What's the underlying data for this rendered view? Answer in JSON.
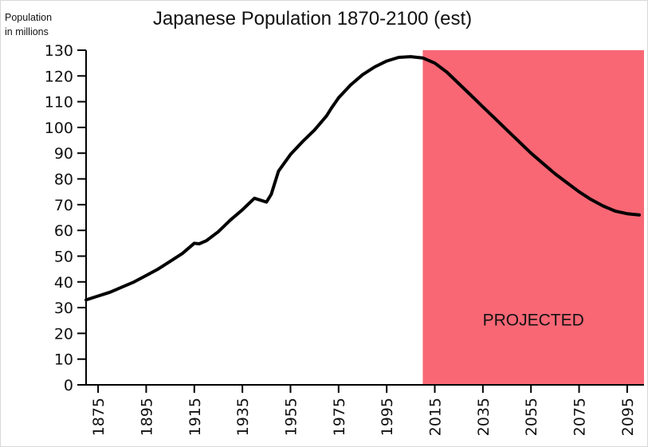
{
  "colors": {
    "projected_fill": "#f96775",
    "line": "#000000",
    "axis": "#000000",
    "text": "#111111"
  },
  "chart_data": {
    "type": "line",
    "title": "Japanese Population 1870-2100 (est)",
    "ylabel_line1": "Population",
    "ylabel_line2": "in millions",
    "xlabel": "",
    "xlim": [
      1870,
      2102
    ],
    "ylim": [
      0,
      130
    ],
    "x_ticks": [
      1875,
      1895,
      1915,
      1935,
      1955,
      1975,
      1995,
      2015,
      2035,
      2055,
      2075,
      2095
    ],
    "y_ticks": [
      0,
      10,
      20,
      30,
      40,
      50,
      60,
      70,
      80,
      90,
      100,
      110,
      120,
      130
    ],
    "grid": false,
    "legend": "none",
    "projected_region": {
      "x_start": 2010,
      "x_end": 2102,
      "label": "PROJECTED"
    },
    "series": [
      {
        "x": [
          1870,
          1875,
          1880,
          1885,
          1890,
          1895,
          1900,
          1905,
          1910,
          1915,
          1917,
          1920,
          1925,
          1930,
          1935,
          1940,
          1945,
          1947,
          1950,
          1955,
          1960,
          1965,
          1970,
          1972,
          1975,
          1980,
          1985,
          1990,
          1995,
          2000,
          2005,
          2010,
          2015,
          2020,
          2025,
          2030,
          2035,
          2040,
          2045,
          2050,
          2055,
          2060,
          2065,
          2070,
          2075,
          2080,
          2085,
          2090,
          2095,
          2100
        ],
        "y": [
          33,
          34.5,
          36,
          38,
          40,
          42.5,
          45,
          48,
          51,
          55,
          54.8,
          56,
          59.5,
          64,
          68,
          72.5,
          71,
          74,
          83,
          89.5,
          94.5,
          99,
          104.5,
          107.5,
          111.5,
          116.5,
          120.5,
          123.5,
          125.8,
          127.2,
          127.5,
          127,
          125,
          121.5,
          117,
          112.5,
          108,
          103.5,
          99,
          94.5,
          90,
          86,
          82,
          78.5,
          75,
          72,
          69.5,
          67.5,
          66.5,
          66
        ]
      }
    ]
  }
}
